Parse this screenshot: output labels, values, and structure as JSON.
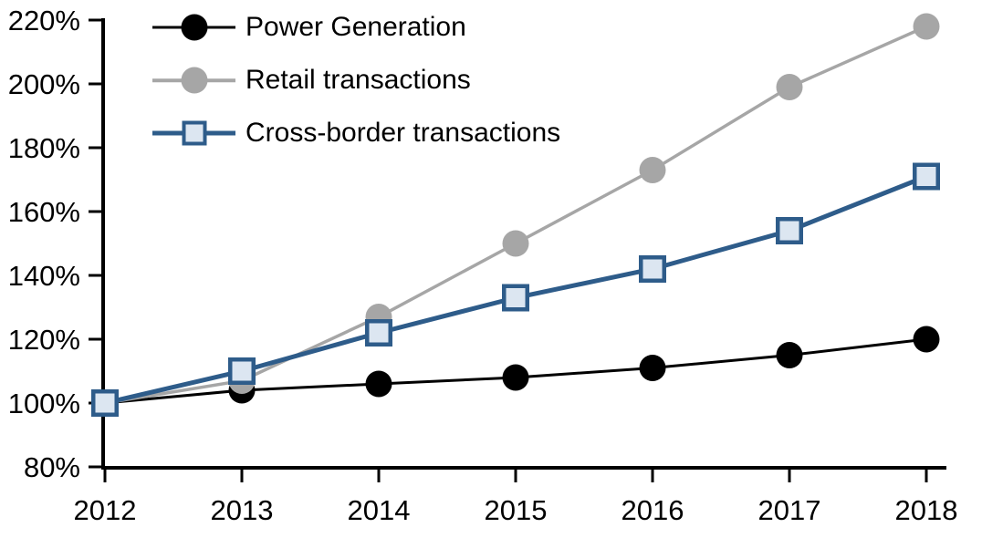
{
  "chart_data": {
    "type": "line",
    "title": "",
    "xlabel": "",
    "ylabel": "",
    "categories": [
      "2012",
      "2013",
      "2014",
      "2015",
      "2016",
      "2017",
      "2018"
    ],
    "x_tick_labels": [
      "2012",
      "2013",
      "2014",
      "2015",
      "2016",
      "2017",
      "2018"
    ],
    "y_axis": {
      "min": 80,
      "max": 220,
      "step": 20,
      "unit": "%"
    },
    "y_tick_labels": [
      "80%",
      "100%",
      "120%",
      "140%",
      "160%",
      "180%",
      "200%",
      "220%"
    ],
    "ylim": [
      80,
      220
    ],
    "grid": false,
    "legend_position": "top-left-inside",
    "series": [
      {
        "name": "Power Generation",
        "marker": "circle",
        "color": "#000000",
        "marker_fill": "#000000",
        "line_width": 3,
        "values": [
          100,
          104,
          106,
          108,
          111,
          115,
          120
        ]
      },
      {
        "name": "Retail transactions",
        "marker": "circle",
        "color": "#A6A6A6",
        "marker_fill": "#A6A6A6",
        "line_width": 3.5,
        "values": [
          100,
          107,
          127,
          150,
          173,
          199,
          218
        ]
      },
      {
        "name": "Cross-border transactions",
        "marker": "square",
        "color": "#2E5C8A",
        "marker_fill": "#DCE6F1",
        "line_width": 5,
        "values": [
          100,
          110,
          122,
          133,
          142,
          154,
          171
        ]
      }
    ]
  },
  "colors": {
    "background": "#FFFFFF",
    "axis": "#000000",
    "text": "#000000"
  }
}
